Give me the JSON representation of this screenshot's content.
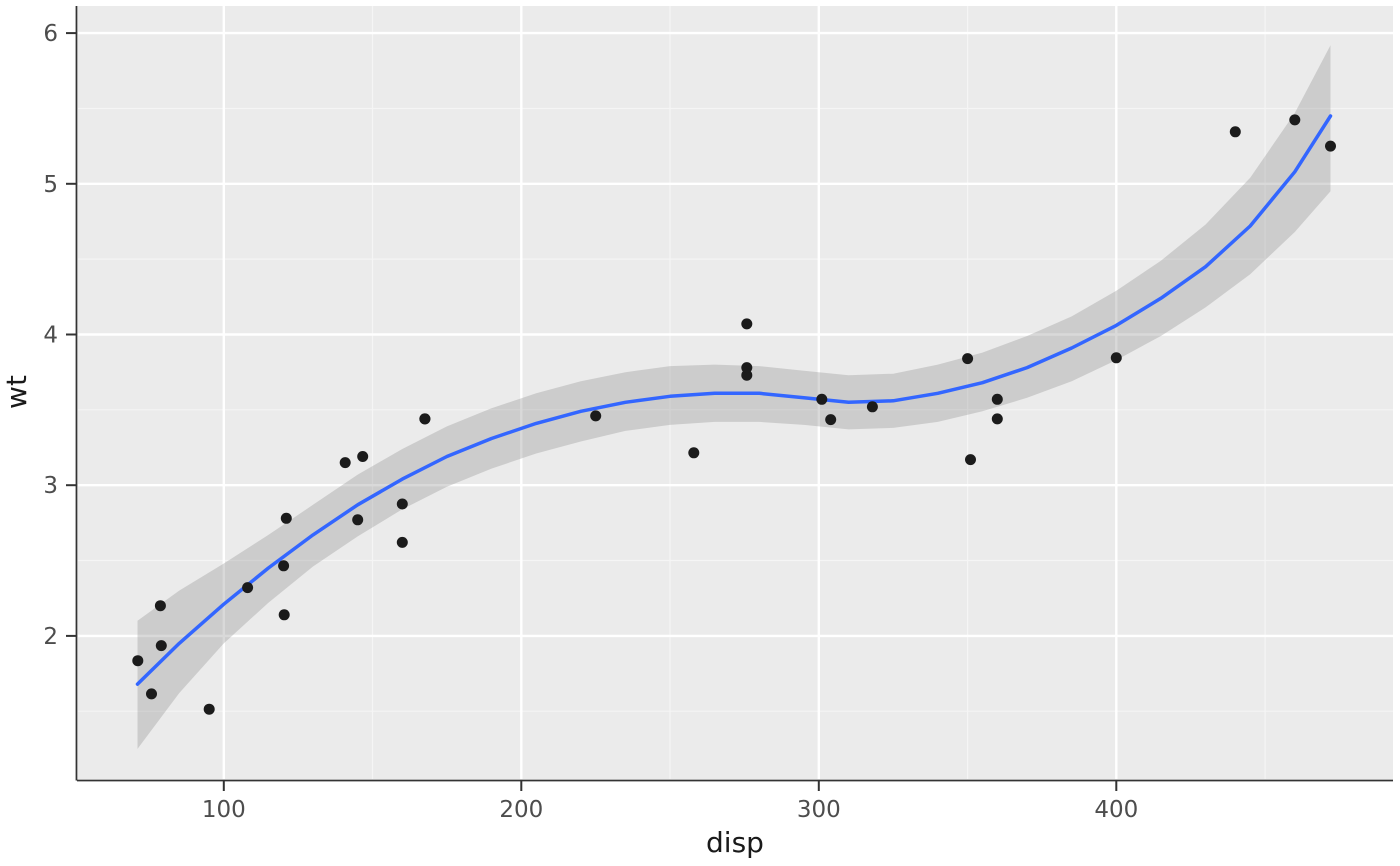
{
  "chart_data": {
    "type": "scatter",
    "xlabel": "disp",
    "ylabel": "wt",
    "x_ticks": [
      100,
      200,
      300,
      400
    ],
    "y_ticks": [
      2,
      3,
      4,
      5,
      6
    ],
    "x_minor_ticks": [
      150,
      250,
      350,
      450
    ],
    "y_minor_ticks": [
      1.5,
      2.5,
      3.5,
      4.5,
      5.5
    ],
    "xlim": [
      51,
      493
    ],
    "ylim": [
      1.05,
      6.18
    ],
    "grid": true,
    "legend": "none",
    "points": {
      "x": [
        160,
        160,
        108,
        258,
        360,
        225,
        360,
        146.7,
        140.8,
        167.6,
        167.6,
        275.8,
        275.8,
        275.8,
        472,
        460,
        440,
        78.7,
        75.7,
        71.1,
        120.1,
        318,
        304,
        350,
        400,
        79,
        120.3,
        95.1,
        351,
        145,
        301,
        121
      ],
      "y": [
        2.62,
        2.875,
        2.32,
        3.215,
        3.44,
        3.46,
        3.57,
        3.19,
        3.15,
        3.44,
        3.44,
        4.07,
        3.73,
        3.78,
        5.25,
        5.424,
        5.345,
        2.2,
        1.615,
        1.835,
        2.465,
        3.52,
        3.435,
        3.84,
        3.845,
        1.935,
        2.14,
        1.513,
        3.17,
        2.77,
        3.57,
        2.78
      ]
    },
    "smooth": {
      "method": "loess",
      "x": [
        71,
        85,
        100,
        115,
        130,
        145,
        160,
        175,
        190,
        205,
        220,
        235,
        250,
        265,
        280,
        295,
        310,
        325,
        340,
        355,
        370,
        385,
        400,
        415,
        430,
        445,
        460,
        472
      ],
      "y": [
        1.68,
        1.95,
        2.21,
        2.45,
        2.67,
        2.87,
        3.04,
        3.19,
        3.31,
        3.41,
        3.49,
        3.55,
        3.59,
        3.61,
        3.61,
        3.58,
        3.55,
        3.56,
        3.61,
        3.68,
        3.78,
        3.91,
        4.06,
        4.24,
        4.45,
        4.72,
        5.08,
        5.45
      ],
      "ymin": [
        1.25,
        1.62,
        1.95,
        2.22,
        2.46,
        2.66,
        2.84,
        2.99,
        3.11,
        3.21,
        3.29,
        3.36,
        3.4,
        3.42,
        3.42,
        3.4,
        3.37,
        3.38,
        3.42,
        3.49,
        3.58,
        3.69,
        3.83,
        3.99,
        4.18,
        4.4,
        4.68,
        4.95
      ],
      "ymax": [
        2.1,
        2.3,
        2.48,
        2.67,
        2.87,
        3.07,
        3.24,
        3.39,
        3.51,
        3.61,
        3.69,
        3.75,
        3.79,
        3.8,
        3.79,
        3.76,
        3.73,
        3.74,
        3.8,
        3.88,
        3.99,
        4.12,
        4.29,
        4.49,
        4.73,
        5.04,
        5.47,
        5.92
      ]
    },
    "colors": {
      "panel": "#EBEBEB",
      "grid_major": "#FFFFFF",
      "grid_minor": "#F5F5F5",
      "point": "#1B1B1B",
      "line": "#3366FF",
      "ribbon": "#9B9B9B",
      "ribbon_opacity": 0.38,
      "axis_text": "#4D4D4D",
      "axis_title": "#1A1A1A",
      "axis_line": "#333333"
    }
  }
}
